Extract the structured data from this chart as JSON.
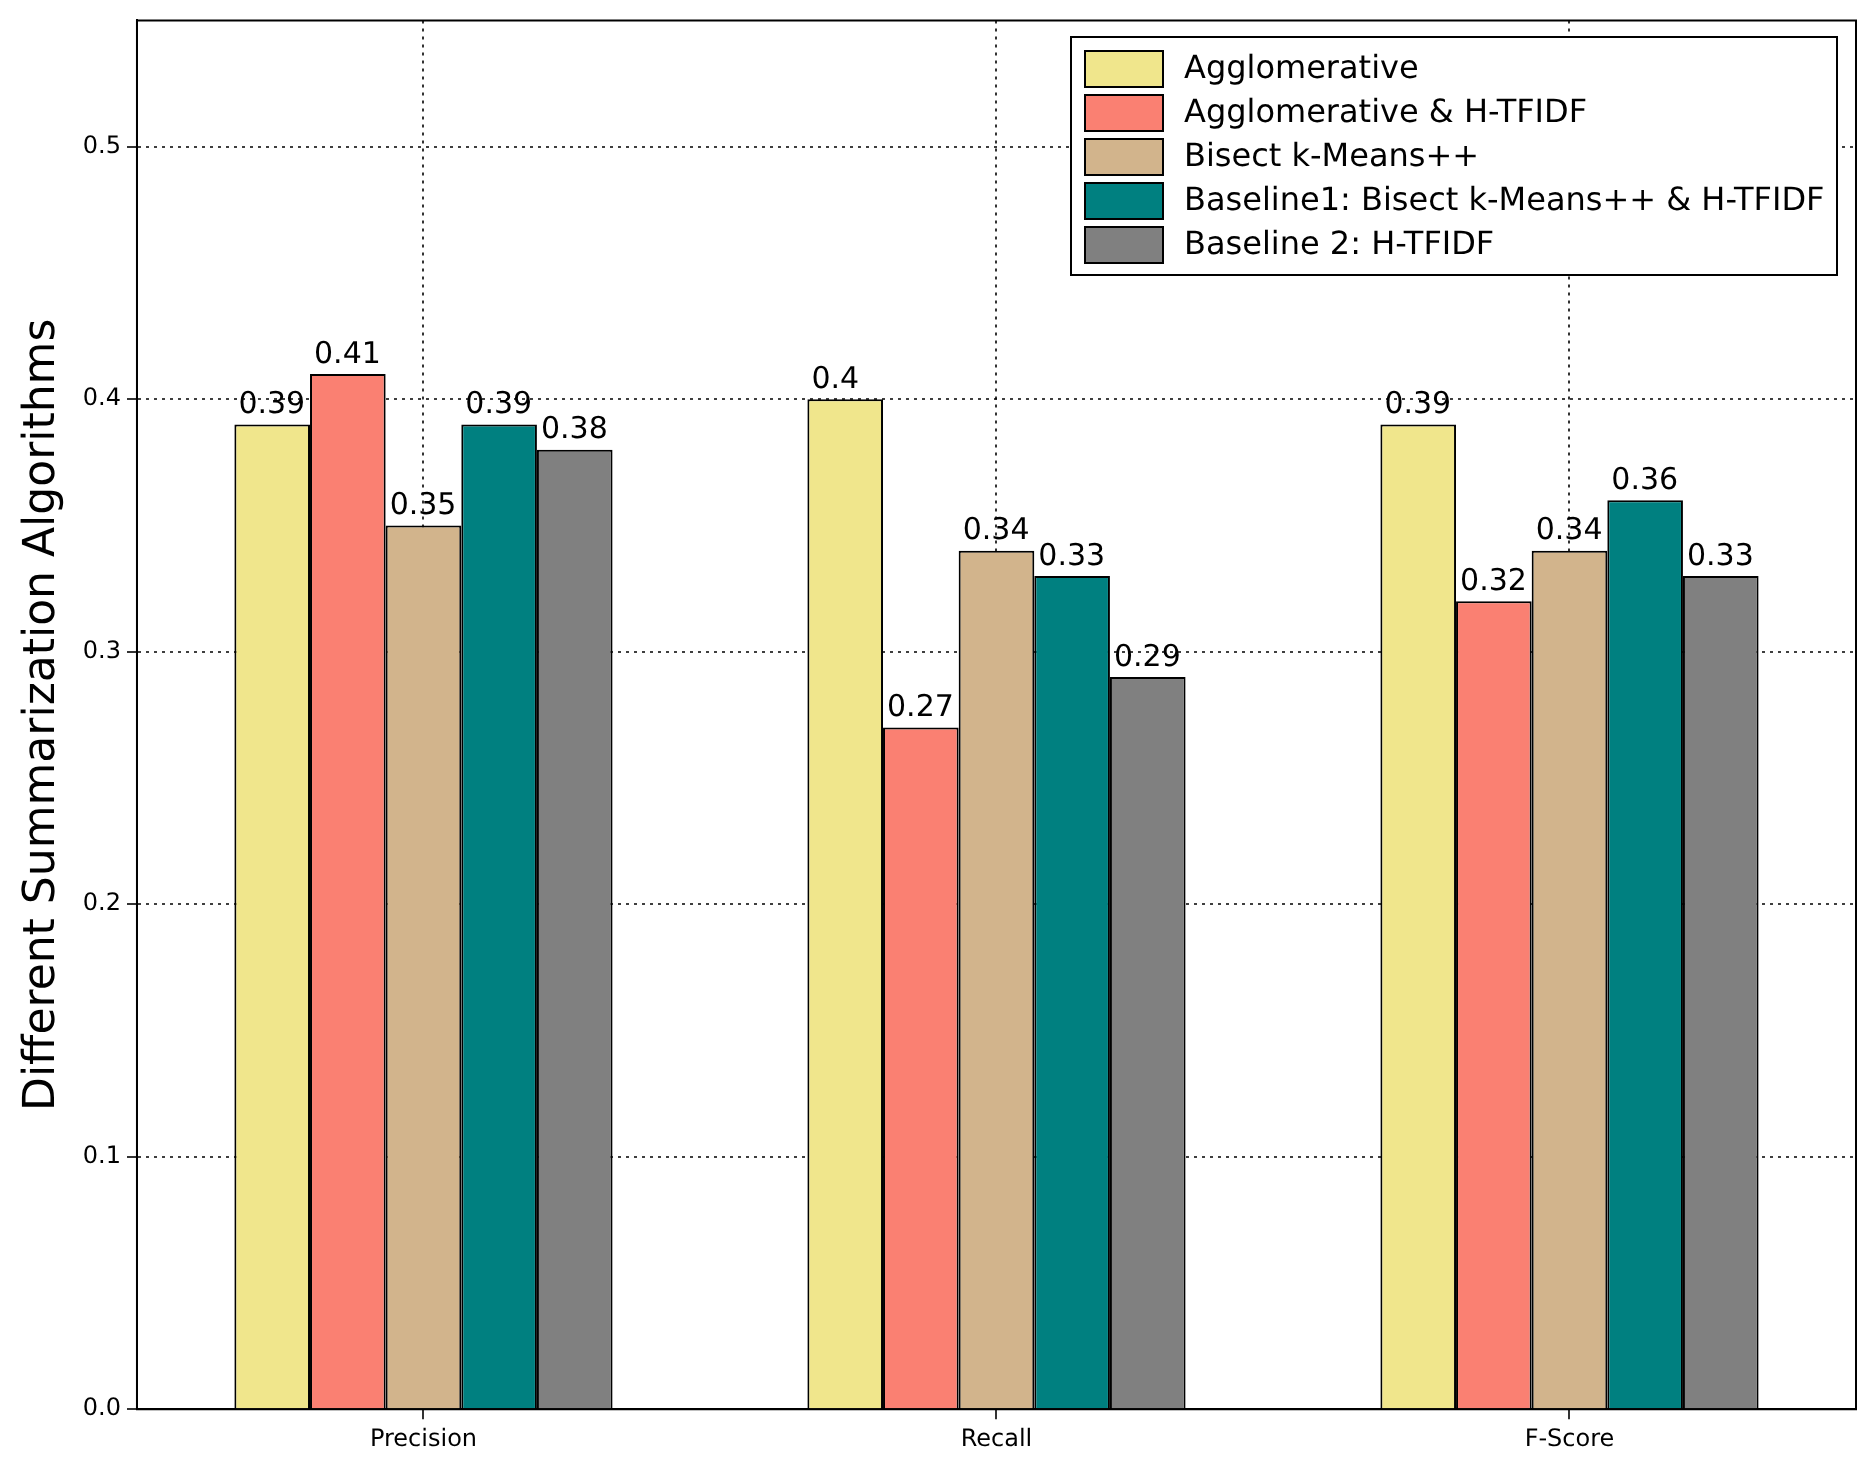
{
  "chart_data": {
    "type": "bar",
    "ylabel": "Different Summarization Algorithms",
    "categories": [
      "Precision",
      "Recall",
      "F-Score"
    ],
    "series": [
      {
        "name": "Agglomerative",
        "color": "#f0e68c",
        "values": [
          0.39,
          0.4,
          0.39
        ]
      },
      {
        "name": "Agglomerative & H-TFIDF",
        "color": "#fa8072",
        "values": [
          0.41,
          0.27,
          0.32
        ]
      },
      {
        "name": "Bisect k-Means++",
        "color": "#d2b48c",
        "values": [
          0.35,
          0.34,
          0.34
        ]
      },
      {
        "name": "Baseline1: Bisect k-Means++ & H-TFIDF",
        "color": "#008080",
        "values": [
          0.39,
          0.33,
          0.36
        ]
      },
      {
        "name": "Baseline 2: H-TFIDF",
        "color": "#808080",
        "values": [
          0.38,
          0.29,
          0.33
        ]
      }
    ],
    "ylim": [
      0,
      0.55
    ],
    "yticks": [
      {
        "value": 0,
        "label": "0.0"
      },
      {
        "value": 0.1,
        "label": "0.1"
      },
      {
        "value": 0.2,
        "label": "0.2"
      },
      {
        "value": 0.3,
        "label": "0.3"
      },
      {
        "value": 0.4,
        "label": "0.4"
      },
      {
        "value": 0.5,
        "label": "0.5"
      }
    ],
    "grid": true,
    "legend": "top right",
    "data_labels": true
  }
}
